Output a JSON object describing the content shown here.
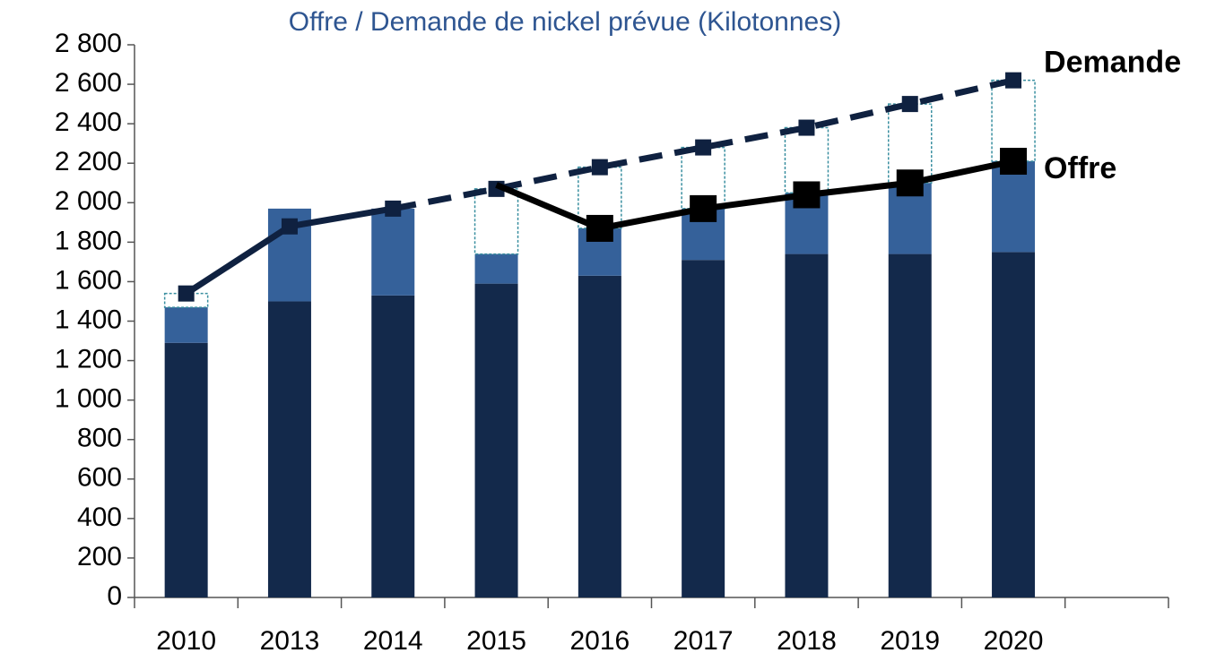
{
  "chart_data": {
    "type": "bar_line",
    "title": "Offre / Demande de nickel prévue (Kilotonnes)",
    "categories": [
      "2010",
      "2013",
      "2014",
      "2015",
      "2016",
      "2017",
      "2018",
      "2019",
      "2020",
      null
    ],
    "bars": [
      {
        "color": "#13294b",
        "values": [
          1290,
          1500,
          1530,
          1590,
          1630,
          1710,
          1740,
          1740,
          1750,
          null
        ]
      },
      {
        "color": "#35619a",
        "values": [
          180,
          470,
          440,
          150,
          240,
          260,
          310,
          360,
          460,
          null
        ]
      }
    ],
    "series": [
      {
        "name": "Demande",
        "color": "#0f2140",
        "dash_start": "2014",
        "values": [
          1540,
          1880,
          1970,
          2070,
          2180,
          2280,
          2380,
          2500,
          2620,
          null
        ]
      },
      {
        "name": "Offre",
        "color": "#000000",
        "markers_from": "2016",
        "values": [
          null,
          null,
          null,
          2090,
          1870,
          1970,
          2040,
          2100,
          2210,
          null
        ]
      }
    ],
    "gap_color": "#3a8fa0",
    "ylim": [
      0,
      2800
    ],
    "yticks": [
      0,
      200,
      400,
      600,
      800,
      {
        "value": 1000,
        "label": "1 000"
      },
      {
        "value": 1200,
        "label": "1 200"
      },
      {
        "value": 1400,
        "label": "1 400"
      },
      {
        "value": 1600,
        "label": "1 600"
      },
      {
        "value": 1800,
        "label": "1 800"
      },
      {
        "value": 2000,
        "label": "2 000"
      },
      {
        "value": 2200,
        "label": "2 200"
      },
      {
        "value": 2400,
        "label": "2 400"
      },
      {
        "value": 2600,
        "label": "2 600"
      },
      {
        "value": 2800,
        "label": "2 800"
      }
    ]
  }
}
